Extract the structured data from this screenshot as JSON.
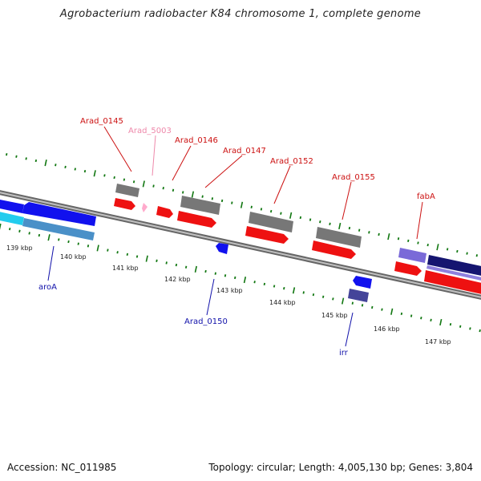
{
  "title": "Agrobacterium radiobacter K84 chromosome 1, complete genome",
  "footer": {
    "accession": "Accession: NC_011985",
    "summary": "Topology: circular; Length: 4,005,130 bp; Genes: 3,804"
  },
  "colors": {
    "forward_cds": "#ee1111",
    "forward_gene": "#777777",
    "reverse_cds": "#1111ee",
    "reverse_gene": "#444499",
    "pseudo": "#ffaacc",
    "light_blue": "#4a90c8",
    "cyan": "#22ccee",
    "dark_navy": "#151570",
    "violet": "#7a6ad8",
    "tick": "#117711",
    "forward_label": "#cc1111",
    "reverse_label": "#1111aa",
    "pseudo_label": "#ee88aa",
    "backbone": "#888888"
  },
  "kbp_ticks": [
    {
      "label": "139 kbp"
    },
    {
      "label": "140 kbp"
    },
    {
      "label": "141 kbp"
    },
    {
      "label": "142 kbp"
    },
    {
      "label": "143 kbp"
    },
    {
      "label": "144 kbp"
    },
    {
      "label": "145 kbp"
    },
    {
      "label": "146 kbp"
    },
    {
      "label": "147 kbp"
    }
  ],
  "gene_labels": {
    "arad_0145": "Arad_0145",
    "arad_5003": "Arad_5003",
    "arad_0146": "Arad_0146",
    "arad_0147": "Arad_0147",
    "arad_0152": "Arad_0152",
    "arad_0155": "Arad_0155",
    "faba": "fabA",
    "aroa": "aroA",
    "arad_0150": "Arad_0150",
    "irr": "irr"
  }
}
